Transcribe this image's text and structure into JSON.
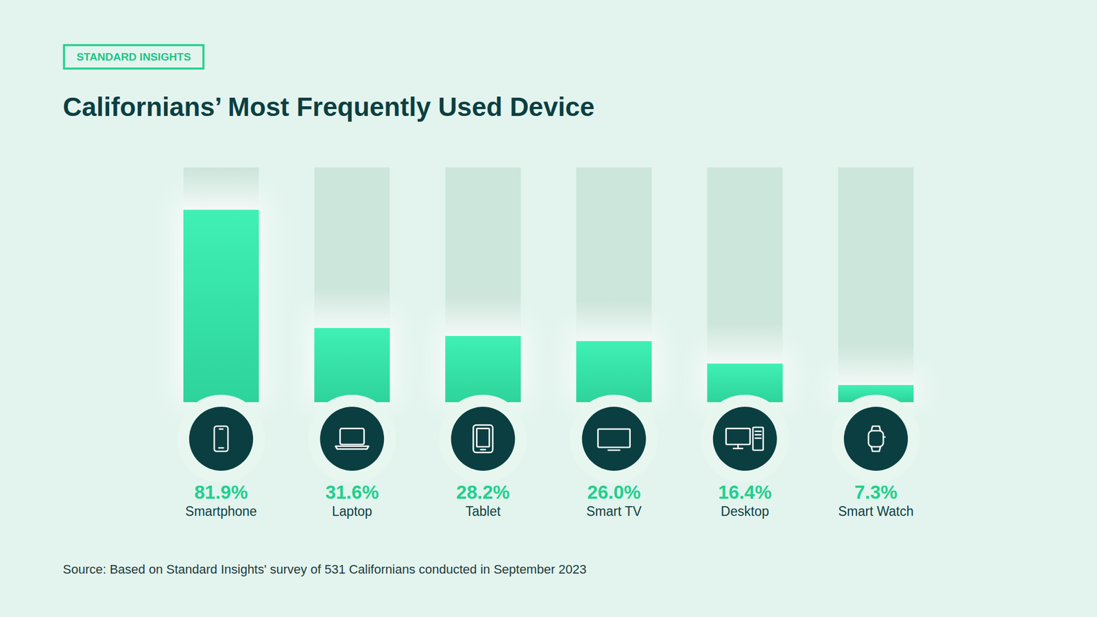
{
  "chart_data": {
    "type": "bar",
    "brand": "STANDARD INSIGHTS",
    "title": "Californians’ Most Frequently Used Device",
    "categories": [
      "Smartphone",
      "Laptop",
      "Tablet",
      "Smart TV",
      "Desktop",
      "Smart Watch"
    ],
    "values": [
      81.9,
      31.6,
      28.2,
      26.0,
      16.4,
      7.3
    ],
    "value_labels": [
      "81.9%",
      "31.6%",
      "28.2%",
      "26.0%",
      "16.4%",
      "7.3%"
    ],
    "color": "#3ff0b4",
    "ylim": [
      0,
      100
    ],
    "data_labels": true,
    "tick_labels": false,
    "grid": false,
    "source": "Source: Based on Standard Insights' survey of 531 Californians conducted in September 2023"
  }
}
